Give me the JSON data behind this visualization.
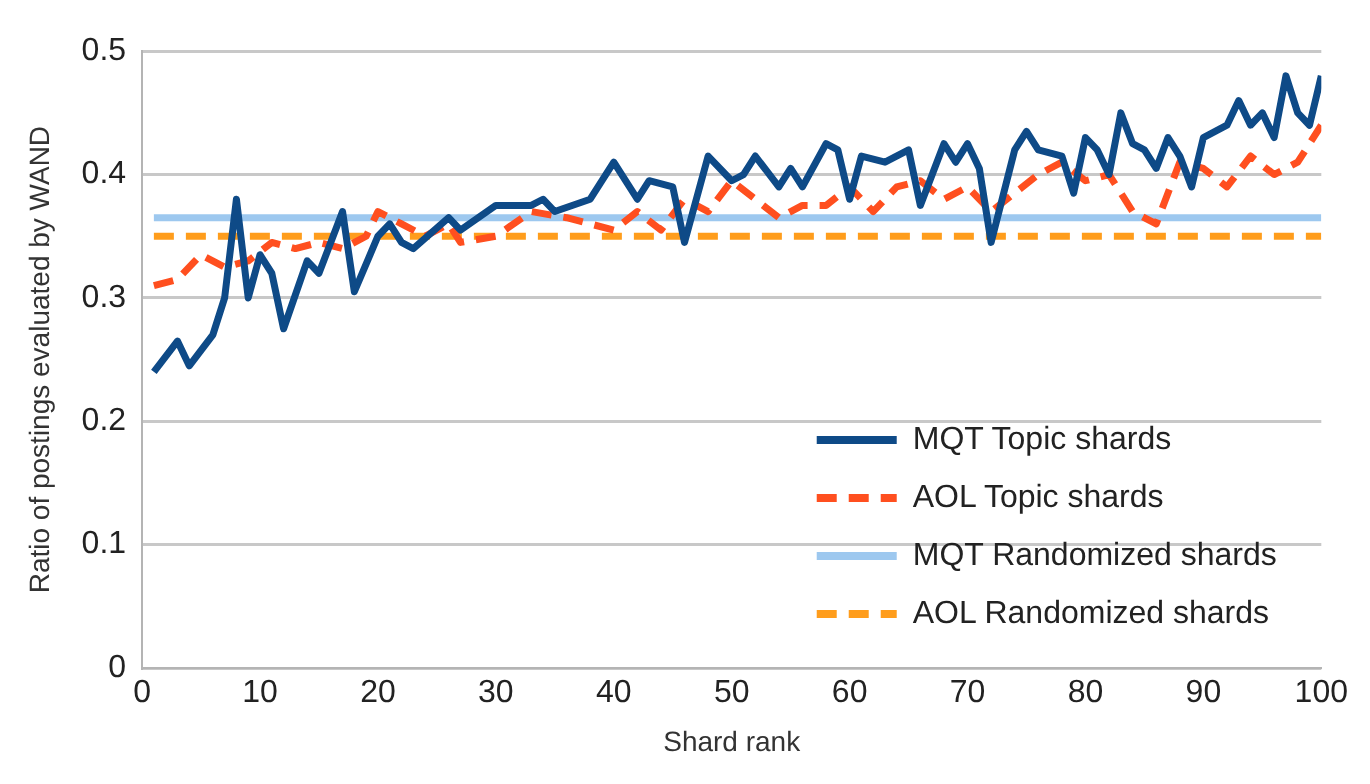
{
  "chart_data": {
    "type": "line",
    "xlabel": "Shard rank",
    "ylabel": "Ratio of postings evaluated by WAND",
    "xlim": [
      0,
      100
    ],
    "xticks": [
      0,
      10,
      20,
      30,
      40,
      50,
      60,
      70,
      80,
      90,
      100
    ],
    "ylim": [
      0,
      0.5
    ],
    "yticks": [
      0,
      0.1,
      0.2,
      0.3,
      0.4,
      0.5
    ],
    "grid": "y",
    "legend": "bottom right",
    "marker": "none",
    "series": [
      {
        "name": "MQT Topic shards",
        "color": "#0e4a87",
        "line_style": "solid",
        "x": [
          1,
          3,
          4,
          6,
          7,
          8,
          9,
          10,
          11,
          12,
          14,
          15,
          17,
          18,
          20,
          21,
          22,
          23,
          26,
          27,
          30,
          33,
          34,
          35,
          38,
          40,
          42,
          43,
          45,
          46,
          48,
          50,
          51,
          52,
          54,
          55,
          56,
          58,
          59,
          60,
          61,
          63,
          65,
          66,
          68,
          69,
          70,
          71,
          72,
          74,
          75,
          76,
          78,
          79,
          80,
          81,
          82,
          83,
          84,
          85,
          86,
          87,
          88,
          89,
          90,
          92,
          93,
          94,
          95,
          96,
          97,
          98,
          99,
          100
        ],
        "values": [
          0.24,
          0.265,
          0.245,
          0.27,
          0.3,
          0.38,
          0.3,
          0.335,
          0.32,
          0.275,
          0.33,
          0.32,
          0.37,
          0.305,
          0.35,
          0.36,
          0.345,
          0.34,
          0.365,
          0.355,
          0.375,
          0.375,
          0.38,
          0.37,
          0.38,
          0.41,
          0.38,
          0.395,
          0.39,
          0.345,
          0.415,
          0.395,
          0.4,
          0.415,
          0.39,
          0.405,
          0.39,
          0.425,
          0.42,
          0.38,
          0.415,
          0.41,
          0.42,
          0.375,
          0.425,
          0.41,
          0.425,
          0.405,
          0.345,
          0.42,
          0.435,
          0.42,
          0.415,
          0.385,
          0.43,
          0.42,
          0.4,
          0.45,
          0.425,
          0.42,
          0.405,
          0.43,
          0.415,
          0.39,
          0.43,
          0.44,
          0.46,
          0.44,
          0.45,
          0.43,
          0.48,
          0.45,
          0.44,
          0.48
        ]
      },
      {
        "name": "AOL Topic shards",
        "color": "#ff4f1f",
        "line_style": "dashed",
        "x": [
          1,
          3,
          5,
          7,
          9,
          11,
          13,
          15,
          17,
          19,
          20,
          22,
          24,
          26,
          27,
          30,
          33,
          36,
          38,
          40,
          42,
          44,
          46,
          48,
          50,
          52,
          54,
          56,
          58,
          60,
          62,
          64,
          66,
          68,
          70,
          72,
          74,
          76,
          78,
          80,
          82,
          84,
          86,
          88,
          90,
          92,
          94,
          96,
          98,
          100
        ],
        "values": [
          0.31,
          0.315,
          0.335,
          0.325,
          0.33,
          0.345,
          0.34,
          0.345,
          0.34,
          0.35,
          0.37,
          0.36,
          0.35,
          0.36,
          0.345,
          0.35,
          0.37,
          0.365,
          0.36,
          0.355,
          0.37,
          0.355,
          0.38,
          0.37,
          0.395,
          0.38,
          0.365,
          0.375,
          0.375,
          0.39,
          0.37,
          0.39,
          0.395,
          0.38,
          0.39,
          0.37,
          0.385,
          0.4,
          0.41,
          0.395,
          0.4,
          0.37,
          0.36,
          0.41,
          0.405,
          0.39,
          0.415,
          0.4,
          0.41,
          0.44
        ]
      },
      {
        "name": "MQT Randomized shards",
        "color": "#9dc8ef",
        "line_style": "solid",
        "x": [
          1,
          100
        ],
        "values": [
          0.365,
          0.365
        ]
      },
      {
        "name": "AOL Randomized shards",
        "color": "#ff9d1c",
        "line_style": "dashed",
        "x": [
          1,
          100
        ],
        "values": [
          0.35,
          0.35
        ]
      }
    ]
  }
}
